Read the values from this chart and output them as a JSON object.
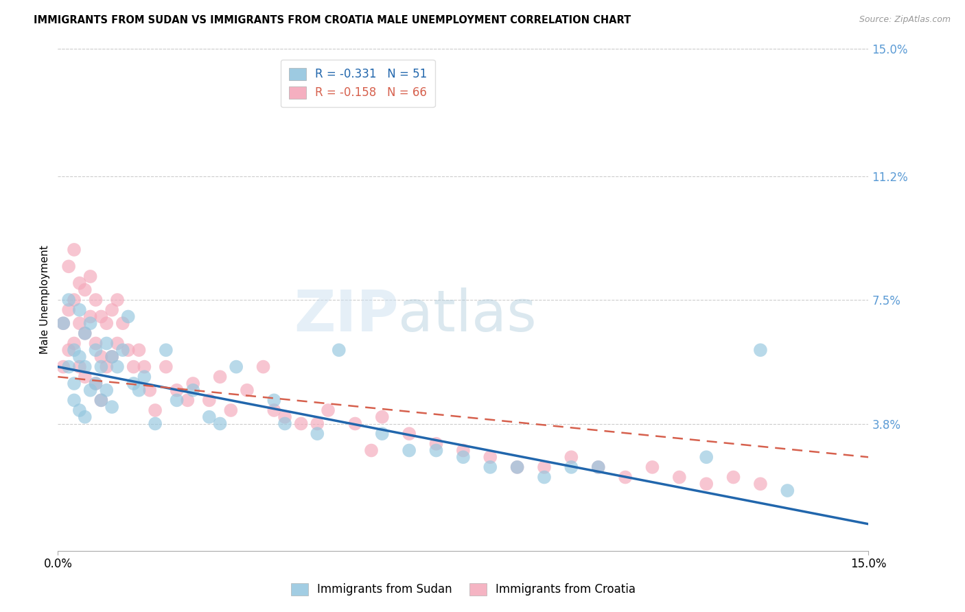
{
  "title": "IMMIGRANTS FROM SUDAN VS IMMIGRANTS FROM CROATIA MALE UNEMPLOYMENT CORRELATION CHART",
  "source": "Source: ZipAtlas.com",
  "ylabel_left": "Male Unemployment",
  "legend_sudan": "R = -0.331   N = 51",
  "legend_croatia": "R = -0.158   N = 66",
  "sudan_color": "#92c5de",
  "croatia_color": "#f4a7b9",
  "sudan_line_color": "#2166ac",
  "croatia_line_color": "#d6604d",
  "background_color": "#ffffff",
  "grid_color": "#cccccc",
  "right_axis_color": "#5b9bd5",
  "xlim": [
    0.0,
    0.15
  ],
  "ylim": [
    0.0,
    0.15
  ],
  "right_yticks": [
    0.038,
    0.075,
    0.112,
    0.15
  ],
  "right_yticklabels": [
    "3.8%",
    "7.5%",
    "11.2%",
    "15.0%"
  ],
  "sudan_line_x": [
    0.0,
    0.15
  ],
  "sudan_line_y": [
    0.055,
    0.008
  ],
  "croatia_line_x": [
    0.0,
    0.15
  ],
  "croatia_line_y": [
    0.052,
    0.028
  ],
  "sudan_scatter_x": [
    0.001,
    0.002,
    0.002,
    0.003,
    0.003,
    0.003,
    0.004,
    0.004,
    0.004,
    0.005,
    0.005,
    0.005,
    0.006,
    0.006,
    0.007,
    0.007,
    0.008,
    0.008,
    0.009,
    0.009,
    0.01,
    0.01,
    0.011,
    0.012,
    0.013,
    0.014,
    0.015,
    0.016,
    0.018,
    0.02,
    0.022,
    0.025,
    0.028,
    0.03,
    0.033,
    0.04,
    0.042,
    0.048,
    0.052,
    0.06,
    0.065,
    0.07,
    0.075,
    0.08,
    0.085,
    0.09,
    0.095,
    0.1,
    0.12,
    0.13,
    0.135
  ],
  "sudan_scatter_y": [
    0.068,
    0.075,
    0.055,
    0.06,
    0.05,
    0.045,
    0.072,
    0.058,
    0.042,
    0.065,
    0.055,
    0.04,
    0.068,
    0.048,
    0.06,
    0.05,
    0.055,
    0.045,
    0.062,
    0.048,
    0.058,
    0.043,
    0.055,
    0.06,
    0.07,
    0.05,
    0.048,
    0.052,
    0.038,
    0.06,
    0.045,
    0.048,
    0.04,
    0.038,
    0.055,
    0.045,
    0.038,
    0.035,
    0.06,
    0.035,
    0.03,
    0.03,
    0.028,
    0.025,
    0.025,
    0.022,
    0.025,
    0.025,
    0.028,
    0.06,
    0.018
  ],
  "croatia_scatter_x": [
    0.001,
    0.001,
    0.002,
    0.002,
    0.002,
    0.003,
    0.003,
    0.003,
    0.004,
    0.004,
    0.004,
    0.005,
    0.005,
    0.005,
    0.006,
    0.006,
    0.007,
    0.007,
    0.007,
    0.008,
    0.008,
    0.008,
    0.009,
    0.009,
    0.01,
    0.01,
    0.011,
    0.011,
    0.012,
    0.013,
    0.014,
    0.015,
    0.016,
    0.017,
    0.018,
    0.02,
    0.022,
    0.024,
    0.025,
    0.028,
    0.03,
    0.032,
    0.035,
    0.038,
    0.04,
    0.042,
    0.045,
    0.048,
    0.05,
    0.055,
    0.058,
    0.06,
    0.065,
    0.07,
    0.075,
    0.08,
    0.085,
    0.09,
    0.095,
    0.1,
    0.105,
    0.11,
    0.115,
    0.12,
    0.125,
    0.13
  ],
  "croatia_scatter_y": [
    0.068,
    0.055,
    0.072,
    0.085,
    0.06,
    0.09,
    0.075,
    0.062,
    0.08,
    0.068,
    0.055,
    0.078,
    0.065,
    0.052,
    0.082,
    0.07,
    0.075,
    0.062,
    0.05,
    0.07,
    0.058,
    0.045,
    0.068,
    0.055,
    0.072,
    0.058,
    0.075,
    0.062,
    0.068,
    0.06,
    0.055,
    0.06,
    0.055,
    0.048,
    0.042,
    0.055,
    0.048,
    0.045,
    0.05,
    0.045,
    0.052,
    0.042,
    0.048,
    0.055,
    0.042,
    0.04,
    0.038,
    0.038,
    0.042,
    0.038,
    0.03,
    0.04,
    0.035,
    0.032,
    0.03,
    0.028,
    0.025,
    0.025,
    0.028,
    0.025,
    0.022,
    0.025,
    0.022,
    0.02,
    0.022,
    0.02
  ],
  "watermark_zip_color": "#c8dff0",
  "watermark_atlas_color": "#b8cfe0"
}
